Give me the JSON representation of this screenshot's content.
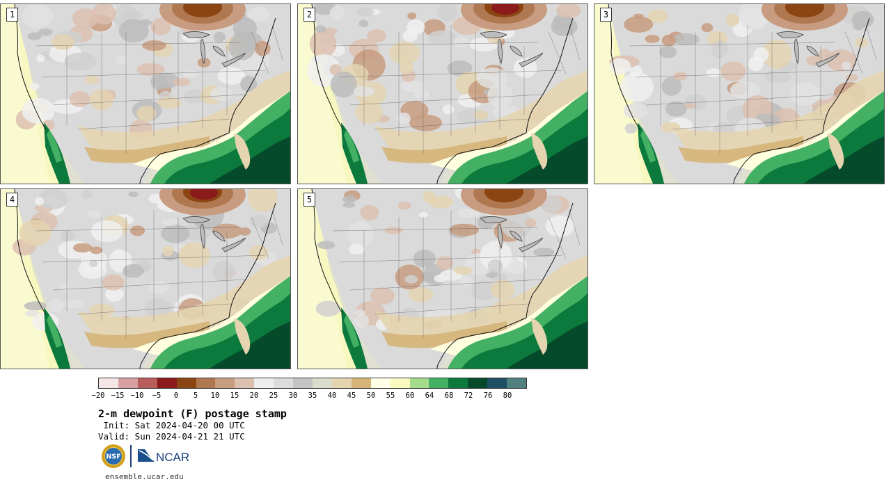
{
  "title": "2-m dewpoint (F) postage stamp",
  "init": " Init: Sat 2024-04-20 00 UTC",
  "valid": "Valid: Sun 2024-04-21 21 UTC",
  "site": "ensemble.ucar.edu",
  "logos": {
    "nsf": {
      "label": "NSF",
      "icon": "nsf-seal-icon"
    },
    "ncar": {
      "label": "NCAR",
      "icon": "ncar-logo-icon"
    }
  },
  "colorbar": {
    "ticks": [
      "−20",
      "−15",
      "−10",
      "−5",
      "0",
      "5",
      "10",
      "15",
      "20",
      "25",
      "30",
      "35",
      "40",
      "45",
      "50",
      "55",
      "60",
      "64",
      "68",
      "72",
      "76",
      "80"
    ],
    "colors": [
      "#f4e6e6",
      "#d8a0a0",
      "#b85c5c",
      "#8b1a1a",
      "#8b4513",
      "#b07850",
      "#c89c80",
      "#dcc0b0",
      "#eeeeee",
      "#dcdcdc",
      "#c4c4c4",
      "#dcdccc",
      "#e4d4b0",
      "#d4b478",
      "#ffffe8",
      "#fafac0",
      "#a4dc8c",
      "#44b064",
      "#0c7a3c",
      "#054a2a",
      "#1e5064",
      "#508080"
    ]
  },
  "stamps": [
    {
      "label": "1",
      "variant": 0
    },
    {
      "label": "2",
      "variant": 1
    },
    {
      "label": "3",
      "variant": 2
    },
    {
      "label": "4",
      "variant": 3
    },
    {
      "label": "5",
      "variant": 4
    }
  ]
}
